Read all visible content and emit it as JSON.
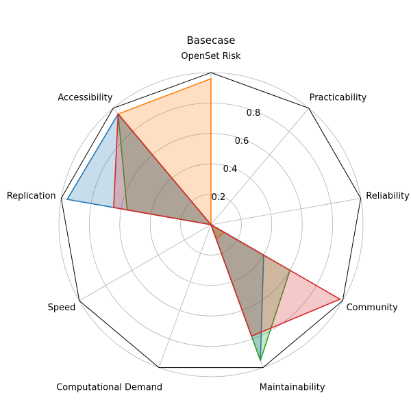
{
  "chart_data": {
    "type": "radar",
    "title": "Basecase",
    "axes": [
      "OpenSet Risk",
      "Practicability",
      "Reliability",
      "Community",
      "Maintainability",
      "Computational Demand",
      "Speed",
      "Replication",
      "Accessibility"
    ],
    "rlim": [
      0,
      1
    ],
    "rticks": [
      0.2,
      0.4,
      0.6,
      0.8
    ],
    "rtick_labels": [
      "0.2",
      "0.4",
      "0.6",
      "0.8"
    ],
    "grid": true,
    "series": [
      {
        "color": "#1f77b4",
        "values": [
          0,
          0,
          0,
          0.4,
          0.95,
          0,
          0,
          0.96,
          0.95
        ]
      },
      {
        "color": "#ff7f0e",
        "values": [
          0.96,
          0,
          0,
          0.1,
          0.1,
          0,
          0,
          0,
          0.95
        ]
      },
      {
        "color": "#2ca02c",
        "values": [
          0,
          0,
          0,
          0.6,
          0.95,
          0,
          0,
          0.56,
          0.95
        ]
      },
      {
        "color": "#d62728",
        "values": [
          0,
          0,
          0,
          0.98,
          0.78,
          0,
          0,
          0.65,
          0.95
        ]
      }
    ]
  }
}
